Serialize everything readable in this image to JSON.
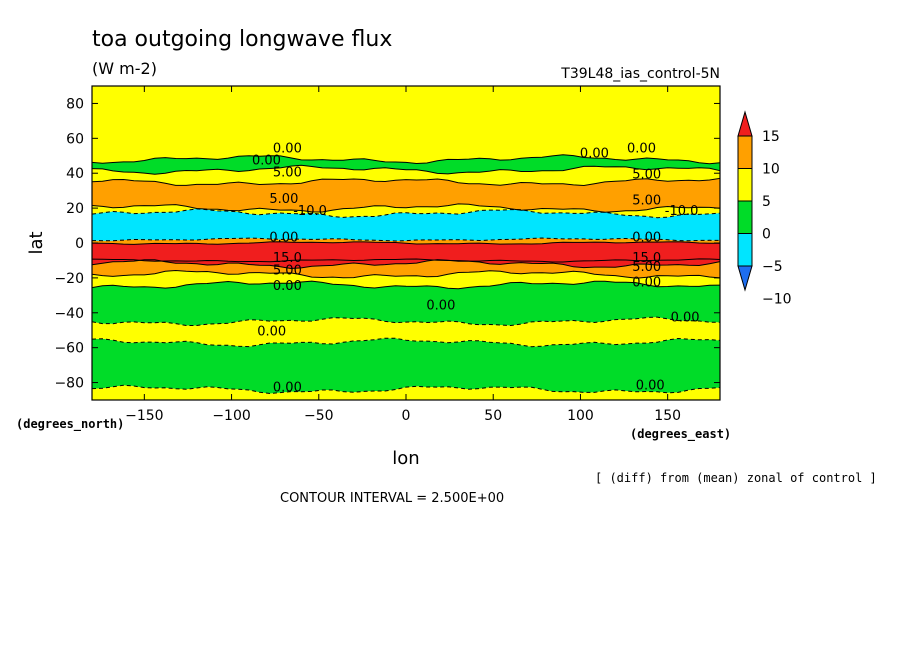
{
  "chart_data": {
    "type": "heatmap",
    "title": "toa outgoing longwave flux",
    "subtitle": "(W m-2)",
    "experiment_label": "T39L48_ias_control-5N",
    "xlabel": "lon",
    "ylabel": "lat",
    "x_unit": "(degrees_east)",
    "y_unit": "(degrees_north)",
    "xlim": [
      -180,
      180
    ],
    "ylim": [
      -90,
      90
    ],
    "x_ticks": [
      -150,
      -100,
      -50,
      0,
      50,
      100,
      150
    ],
    "y_ticks": [
      80,
      60,
      40,
      20,
      0,
      -20,
      -40,
      -60,
      -80
    ],
    "x_tick_labels": [
      "−150",
      "−100",
      "−50",
      "0",
      "50",
      "100",
      "150"
    ],
    "y_tick_labels": [
      "80",
      "60",
      "40",
      "20",
      "0",
      "−20",
      "−40",
      "−60",
      "−80"
    ],
    "note": "[ (diff) from (mean) zonal of control ]",
    "contour_interval_text": "CONTOUR INTERVAL = 2.500E+00",
    "colorbar": {
      "placement": "right",
      "labels": [
        "15",
        "10",
        "5",
        "0",
        "−5",
        "−10"
      ],
      "levels": [
        -10,
        -5,
        0,
        5,
        10,
        15
      ],
      "colors": [
        "#1e6ef0",
        "#00e5ff",
        "#00dc28",
        "#ffff00",
        "#ffa000",
        "#f01e1e"
      ]
    },
    "bands": [
      {
        "lat_min": -90,
        "lat_max": -84,
        "value": 2.5
      },
      {
        "lat_min": -84,
        "lat_max": -57,
        "value": -2.5
      },
      {
        "lat_min": -57,
        "lat_max": -45,
        "value": 2.5
      },
      {
        "lat_min": -45,
        "lat_max": -24,
        "value": -2.5
      },
      {
        "lat_min": -24,
        "lat_max": -18,
        "value": 2.5
      },
      {
        "lat_min": -18,
        "lat_max": -12,
        "value": 7.5
      },
      {
        "lat_min": -12,
        "lat_max": -10,
        "value": 12.5
      },
      {
        "lat_min": -10,
        "lat_max": 0,
        "value": 17.5
      },
      {
        "lat_min": 0,
        "lat_max": 2,
        "value": 7.5
      },
      {
        "lat_min": 2,
        "lat_max": 17,
        "value": -7.5
      },
      {
        "lat_min": 17,
        "lat_max": 20,
        "value": 2.5
      },
      {
        "lat_min": 20,
        "lat_max": 35,
        "value": 7.5
      },
      {
        "lat_min": 35,
        "lat_max": 42,
        "value": 2.5
      },
      {
        "lat_min": 42,
        "lat_max": 48,
        "value": -2.5
      },
      {
        "lat_min": 48,
        "lat_max": 90,
        "value": 2.5
      }
    ],
    "contour_labels": [
      {
        "text": "0.00",
        "lon": -68,
        "lat": 52
      },
      {
        "text": "0.00",
        "lon": -80,
        "lat": 45
      },
      {
        "text": "0.00",
        "lon": 108,
        "lat": 49
      },
      {
        "text": "0.00",
        "lon": 135,
        "lat": 52
      },
      {
        "text": "5.00",
        "lon": -68,
        "lat": 38
      },
      {
        "text": "5.00",
        "lon": 138,
        "lat": 37
      },
      {
        "text": "5.00",
        "lon": -70,
        "lat": 23
      },
      {
        "text": "5.00",
        "lon": 138,
        "lat": 22
      },
      {
        "text": "-10.0",
        "lon": -55,
        "lat": 16
      },
      {
        "text": "-10.0",
        "lon": 158,
        "lat": 16
      },
      {
        "text": "0.00",
        "lon": -70,
        "lat": 1
      },
      {
        "text": "0.00",
        "lon": 138,
        "lat": 1
      },
      {
        "text": "15.0",
        "lon": -68,
        "lat": -11
      },
      {
        "text": "15.0",
        "lon": 138,
        "lat": -11
      },
      {
        "text": "5.00",
        "lon": -68,
        "lat": -18
      },
      {
        "text": "5.00",
        "lon": 138,
        "lat": -16
      },
      {
        "text": "0.00",
        "lon": -68,
        "lat": -27
      },
      {
        "text": "0.00",
        "lon": 138,
        "lat": -25
      },
      {
        "text": "0.00",
        "lon": 20,
        "lat": -38
      },
      {
        "text": "0.00",
        "lon": 160,
        "lat": -45
      },
      {
        "text": "0.00",
        "lon": -77,
        "lat": -53
      },
      {
        "text": "0.00",
        "lon": -68,
        "lat": -85
      },
      {
        "text": "0.00",
        "lon": 140,
        "lat": -84
      }
    ]
  }
}
